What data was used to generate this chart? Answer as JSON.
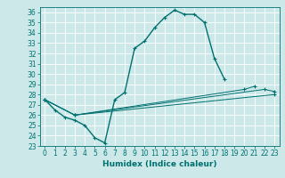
{
  "xlabel": "Humidex (Indice chaleur)",
  "xlim": [
    -0.5,
    23.5
  ],
  "ylim": [
    23,
    36.5
  ],
  "yticks": [
    23,
    24,
    25,
    26,
    27,
    28,
    29,
    30,
    31,
    32,
    33,
    34,
    35,
    36
  ],
  "xticks": [
    0,
    1,
    2,
    3,
    4,
    5,
    6,
    7,
    8,
    9,
    10,
    11,
    12,
    13,
    14,
    15,
    16,
    17,
    18,
    19,
    20,
    21,
    22,
    23
  ],
  "bg_color": "#cce8e8",
  "grid_color": "#ffffff",
  "line_color": "#007070",
  "lines_data": [
    {
      "x": [
        0,
        1,
        2,
        3,
        4,
        5,
        6,
        7,
        8,
        9,
        10,
        11,
        12,
        13,
        14,
        15,
        16,
        17,
        18
      ],
      "y": [
        27.5,
        26.5,
        25.8,
        25.5,
        25.0,
        23.8,
        23.3,
        27.5,
        28.2,
        32.5,
        33.2,
        34.5,
        35.5,
        36.2,
        35.8,
        35.8,
        35.0,
        31.5,
        29.5
      ]
    },
    {
      "x": [
        0,
        3,
        20,
        21
      ],
      "y": [
        27.5,
        26.0,
        28.5,
        28.8
      ]
    },
    {
      "x": [
        0,
        3,
        22,
        23
      ],
      "y": [
        27.5,
        26.0,
        28.5,
        28.3
      ]
    },
    {
      "x": [
        0,
        3,
        23
      ],
      "y": [
        27.5,
        26.0,
        28.0
      ]
    }
  ],
  "xlabel_fontsize": 6.5,
  "tick_fontsize": 5.5
}
